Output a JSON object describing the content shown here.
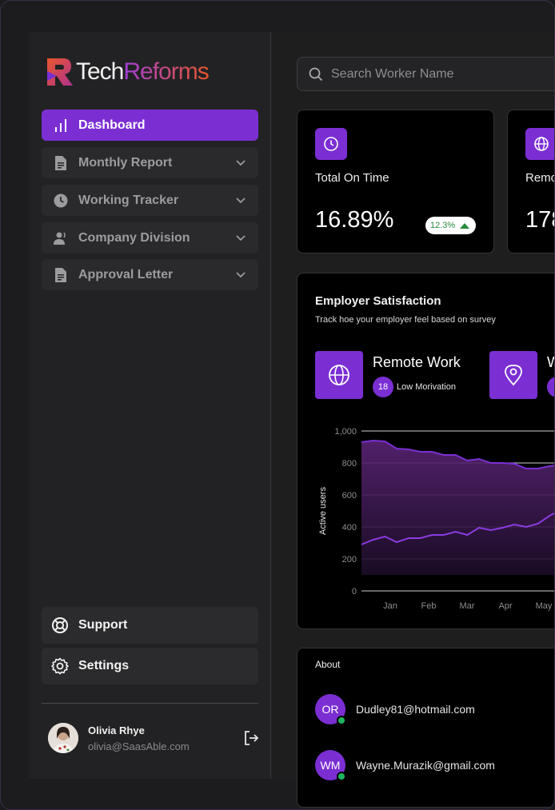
{
  "brand": {
    "part1": "Tech",
    "part2": "Reforms",
    "accent": "#7b2fd3",
    "mark_color": "#e8562c"
  },
  "sidebar": {
    "items": [
      {
        "label": "Dashboard",
        "icon": "bar-chart-icon",
        "active": true
      },
      {
        "label": "Monthly Report",
        "icon": "document-icon"
      },
      {
        "label": "Working Tracker",
        "icon": "clock-icon"
      },
      {
        "label": "Company Division",
        "icon": "people-icon"
      },
      {
        "label": "Approval Letter",
        "icon": "document-icon"
      }
    ],
    "support_label": "Support",
    "settings_label": "Settings"
  },
  "user": {
    "name": "Olivia Rhye",
    "email": "olivia@SaasAble.com"
  },
  "search": {
    "placeholder": "Search Worker Name"
  },
  "stats": [
    {
      "label": "Total On Time",
      "value": "16.89%",
      "change": "12.3%",
      "icon": "clock-icon"
    },
    {
      "label": "Remo",
      "value": "178",
      "icon": "globe-icon"
    }
  ],
  "satisfaction": {
    "title": "Employer Satisfaction",
    "subtitle": "Track hoe your employer feel based on survey",
    "categories": [
      {
        "name": "Remote Work",
        "count": "18",
        "note": "Low Morivation",
        "icon": "globe-icon"
      },
      {
        "name": "W",
        "count": "1",
        "icon": "location-pin-icon"
      }
    ]
  },
  "chart_data": {
    "type": "area",
    "ylabel": "Active users",
    "ylim": [
      0,
      1000
    ],
    "yticks": [
      "1,000",
      "800",
      "600",
      "400",
      "200",
      "0"
    ],
    "xticks": [
      "Jan",
      "Feb",
      "Mar",
      "Apr",
      "May"
    ],
    "x": [
      0,
      0.25,
      0.5,
      0.75,
      1,
      1.25,
      1.5,
      1.75,
      2,
      2.25,
      2.5,
      2.75,
      3,
      3.25,
      3.5,
      3.75,
      4,
      4.25
    ],
    "series": [
      {
        "values": [
          930,
          940,
          935,
          890,
          885,
          870,
          870,
          850,
          850,
          815,
          825,
          800,
          800,
          795,
          765,
          765,
          780,
          790
        ]
      },
      {
        "values": [
          290,
          320,
          340,
          305,
          330,
          330,
          350,
          350,
          370,
          350,
          395,
          380,
          395,
          415,
          400,
          420,
          470,
          510
        ]
      }
    ],
    "grid": true
  },
  "about": {
    "title": "About",
    "contacts": [
      {
        "initials": "OR",
        "email": "Dudley81@hotmail.com"
      },
      {
        "initials": "WM",
        "email": "Wayne.Murazik@gmail.com"
      }
    ]
  }
}
